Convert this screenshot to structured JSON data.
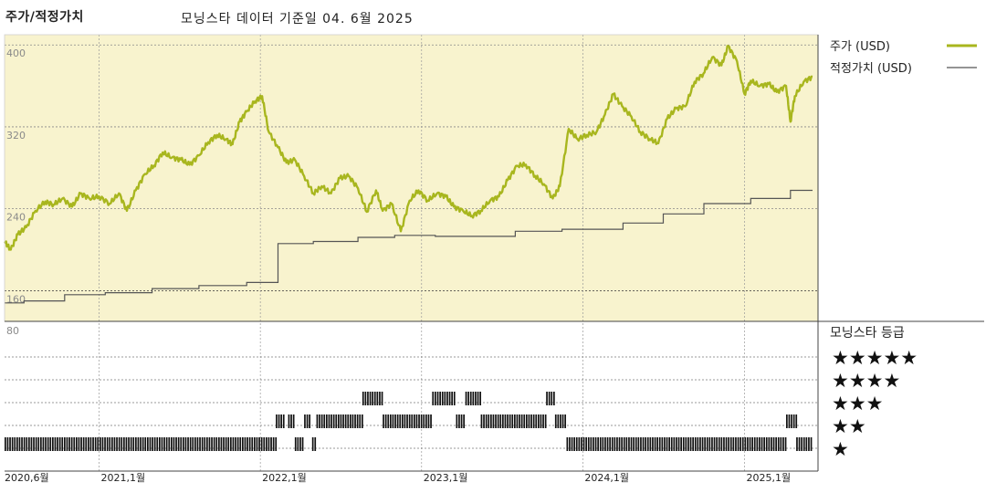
{
  "chart_data": {
    "type": "line",
    "title": "주가/적정가치",
    "subtitle": "모닝스타 데이터 기준일 04. 6월 2025",
    "x_range": [
      "2020-06-01",
      "2025-06-04"
    ],
    "x_ticks": [
      {
        "date": "2020-06-01",
        "label": "2020,6월"
      },
      {
        "date": "2021-01-01",
        "label": "2021,1월"
      },
      {
        "date": "2022-01-01",
        "label": "2022,1월"
      },
      {
        "date": "2023-01-01",
        "label": "2023,1월"
      },
      {
        "date": "2024-01-01",
        "label": "2024,1월"
      },
      {
        "date": "2025-01-01",
        "label": "2025,1월"
      }
    ],
    "y_ticks": [
      400,
      320,
      240,
      160
    ],
    "ylim": [
      130,
      410
    ],
    "grid": true,
    "legend_position": "right",
    "colors": {
      "price": "#a8b61e",
      "fair_value": "#555555",
      "panel_bg": "#f8f3ce"
    },
    "series": [
      {
        "name": "주가 (USD)",
        "key": "price",
        "points": [
          [
            "2020-06-01",
            208
          ],
          [
            "2020-06-15",
            200
          ],
          [
            "2020-07-01",
            215
          ],
          [
            "2020-07-20",
            222
          ],
          [
            "2020-08-10",
            238
          ],
          [
            "2020-09-01",
            247
          ],
          [
            "2020-09-20",
            244
          ],
          [
            "2020-10-10",
            250
          ],
          [
            "2020-11-01",
            242
          ],
          [
            "2020-11-20",
            255
          ],
          [
            "2020-12-10",
            250
          ],
          [
            "2021-01-01",
            252
          ],
          [
            "2021-01-25",
            245
          ],
          [
            "2021-02-15",
            255
          ],
          [
            "2021-03-05",
            238
          ],
          [
            "2021-03-25",
            258
          ],
          [
            "2021-04-15",
            274
          ],
          [
            "2021-05-05",
            282
          ],
          [
            "2021-05-25",
            295
          ],
          [
            "2021-06-15",
            290
          ],
          [
            "2021-07-05",
            288
          ],
          [
            "2021-07-25",
            283
          ],
          [
            "2021-08-15",
            292
          ],
          [
            "2021-09-05",
            305
          ],
          [
            "2021-09-25",
            312
          ],
          [
            "2021-10-15",
            308
          ],
          [
            "2021-10-30",
            303
          ],
          [
            "2021-11-15",
            325
          ],
          [
            "2021-12-01",
            335
          ],
          [
            "2021-12-20",
            345
          ],
          [
            "2022-01-05",
            350
          ],
          [
            "2022-01-20",
            315
          ],
          [
            "2022-02-10",
            300
          ],
          [
            "2022-03-01",
            285
          ],
          [
            "2022-03-20",
            288
          ],
          [
            "2022-04-10",
            272
          ],
          [
            "2022-05-01",
            255
          ],
          [
            "2022-05-20",
            262
          ],
          [
            "2022-06-10",
            255
          ],
          [
            "2022-06-30",
            270
          ],
          [
            "2022-07-20",
            272
          ],
          [
            "2022-08-10",
            260
          ],
          [
            "2022-08-30",
            237
          ],
          [
            "2022-09-20",
            258
          ],
          [
            "2022-10-05",
            238
          ],
          [
            "2022-10-25",
            245
          ],
          [
            "2022-11-15",
            218
          ],
          [
            "2022-12-05",
            248
          ],
          [
            "2022-12-25",
            258
          ],
          [
            "2023-01-15",
            248
          ],
          [
            "2023-02-05",
            255
          ],
          [
            "2023-02-25",
            252
          ],
          [
            "2023-03-15",
            242
          ],
          [
            "2023-04-05",
            238
          ],
          [
            "2023-04-25",
            233
          ],
          [
            "2023-05-15",
            238
          ],
          [
            "2023-06-05",
            248
          ],
          [
            "2023-06-25",
            252
          ],
          [
            "2023-07-15",
            268
          ],
          [
            "2023-08-05",
            282
          ],
          [
            "2023-08-25",
            283
          ],
          [
            "2023-09-15",
            272
          ],
          [
            "2023-10-05",
            264
          ],
          [
            "2023-10-25",
            250
          ],
          [
            "2023-11-10",
            262
          ],
          [
            "2023-11-30",
            318
          ],
          [
            "2023-12-20",
            308
          ],
          [
            "2024-01-10",
            312
          ],
          [
            "2024-02-01",
            315
          ],
          [
            "2024-02-20",
            332
          ],
          [
            "2024-03-10",
            352
          ],
          [
            "2024-03-30",
            340
          ],
          [
            "2024-04-20",
            330
          ],
          [
            "2024-05-10",
            315
          ],
          [
            "2024-06-01",
            308
          ],
          [
            "2024-06-20",
            304
          ],
          [
            "2024-07-10",
            328
          ],
          [
            "2024-07-30",
            338
          ],
          [
            "2024-08-20",
            340
          ],
          [
            "2024-09-10",
            364
          ],
          [
            "2024-09-30",
            372
          ],
          [
            "2024-10-20",
            388
          ],
          [
            "2024-11-10",
            380
          ],
          [
            "2024-11-25",
            399
          ],
          [
            "2024-12-15",
            384
          ],
          [
            "2025-01-01",
            352
          ],
          [
            "2025-01-15",
            365
          ],
          [
            "2025-02-05",
            360
          ],
          [
            "2025-02-25",
            362
          ],
          [
            "2025-03-15",
            354
          ],
          [
            "2025-04-05",
            360
          ],
          [
            "2025-04-15",
            325
          ],
          [
            "2025-04-25",
            350
          ],
          [
            "2025-05-15",
            364
          ],
          [
            "2025-06-04",
            369
          ]
        ]
      },
      {
        "name": "적정가치 (USD)",
        "key": "fair_value",
        "steps": [
          [
            "2020-06-01",
            148
          ],
          [
            "2020-07-15",
            150
          ],
          [
            "2020-10-15",
            156
          ],
          [
            "2021-01-15",
            158
          ],
          [
            "2021-05-01",
            162
          ],
          [
            "2021-08-15",
            165
          ],
          [
            "2021-12-01",
            168
          ],
          [
            "2022-02-10",
            206
          ],
          [
            "2022-05-01",
            208
          ],
          [
            "2022-08-10",
            212
          ],
          [
            "2022-11-01",
            214
          ],
          [
            "2023-02-01",
            213
          ],
          [
            "2023-08-01",
            218
          ],
          [
            "2023-11-15",
            220
          ],
          [
            "2024-04-01",
            226
          ],
          [
            "2024-07-01",
            235
          ],
          [
            "2024-10-01",
            245
          ],
          [
            "2025-01-15",
            250
          ],
          [
            "2025-04-15",
            258
          ],
          [
            "2025-06-04",
            258
          ]
        ]
      }
    ],
    "rating": {
      "title": "모닝스타 등급",
      "levels": [
        "★★★★★",
        "★★★★",
        "★★★",
        "★★",
        "★"
      ],
      "periods": [
        {
          "start": "2020-06-01",
          "end": "2022-02-05",
          "stars": 1
        },
        {
          "start": "2022-02-05",
          "end": "2022-02-25",
          "stars": 2
        },
        {
          "start": "2022-03-05",
          "end": "2022-03-20",
          "stars": 2
        },
        {
          "start": "2022-03-20",
          "end": "2022-04-10",
          "stars": 1
        },
        {
          "start": "2022-04-10",
          "end": "2022-04-25",
          "stars": 2
        },
        {
          "start": "2022-04-28",
          "end": "2022-05-08",
          "stars": 1
        },
        {
          "start": "2022-05-08",
          "end": "2022-08-20",
          "stars": 2
        },
        {
          "start": "2022-08-20",
          "end": "2022-10-05",
          "stars": 3
        },
        {
          "start": "2022-10-05",
          "end": "2023-01-25",
          "stars": 2
        },
        {
          "start": "2023-01-25",
          "end": "2023-02-05",
          "stars": 3
        },
        {
          "start": "2023-02-05",
          "end": "2023-03-20",
          "stars": 3
        },
        {
          "start": "2023-03-20",
          "end": "2023-04-10",
          "stars": 2
        },
        {
          "start": "2023-04-10",
          "end": "2023-05-15",
          "stars": 3
        },
        {
          "start": "2023-05-15",
          "end": "2023-10-10",
          "stars": 2
        },
        {
          "start": "2023-10-10",
          "end": "2023-10-30",
          "stars": 3
        },
        {
          "start": "2023-10-30",
          "end": "2023-11-25",
          "stars": 2
        },
        {
          "start": "2023-11-25",
          "end": "2025-04-05",
          "stars": 1
        },
        {
          "start": "2025-04-05",
          "end": "2025-04-28",
          "stars": 2
        },
        {
          "start": "2025-04-28",
          "end": "2025-06-04",
          "stars": 1
        }
      ]
    }
  }
}
